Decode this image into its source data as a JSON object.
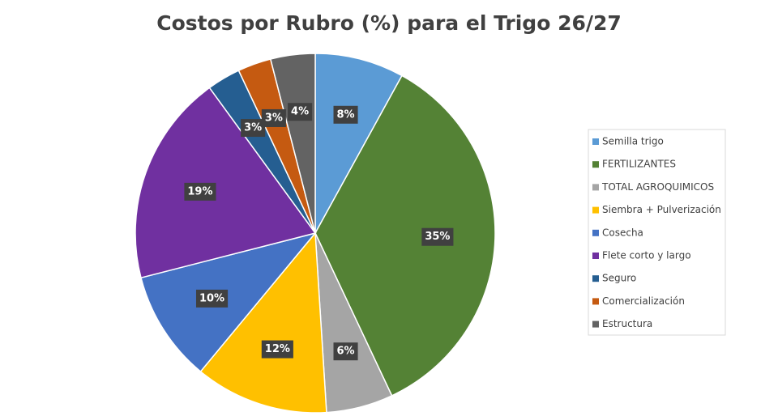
{
  "chart_data": {
    "type": "pie",
    "title": "Costos por Rubro (%) para el Trigo 26/27",
    "categories": [
      "Semilla trigo",
      "FERTILIZANTES",
      "TOTAL AGROQUIMICOS",
      "Siembra + Pulverización",
      "Cosecha",
      "Flete corto y largo",
      "Seguro",
      "Comercialización",
      "Estructura"
    ],
    "values": [
      8,
      35,
      6,
      12,
      10,
      19,
      3,
      3,
      4
    ],
    "value_labels": [
      "8%",
      "35%",
      "6%",
      "12%",
      "10%",
      "19%",
      "3%",
      "3%",
      "4%"
    ],
    "colors": [
      "#5b9bd5",
      "#548235",
      "#a5a5a5",
      "#ffc000",
      "#4472c4",
      "#7030a0",
      "#255e91",
      "#c55a11",
      "#636363"
    ],
    "legend": "right"
  }
}
